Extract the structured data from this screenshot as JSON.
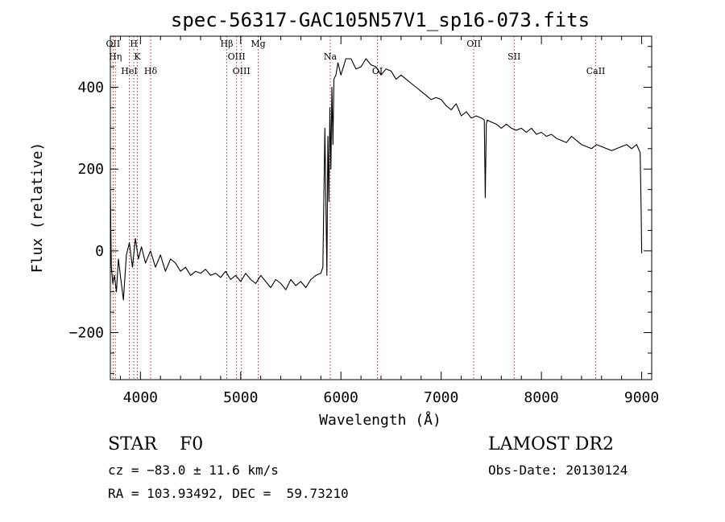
{
  "chart_data": {
    "type": "line",
    "title": "spec-56317-GAC105N57V1_sp16-073.fits",
    "xlabel": "Wavelength (Å)",
    "ylabel": "Flux (relative)",
    "xlim": [
      3700,
      9100
    ],
    "ylim": [
      -315,
      525
    ],
    "xticks": [
      4000,
      5000,
      6000,
      7000,
      8000,
      9000
    ],
    "yticks": [
      -200,
      0,
      200,
      400
    ],
    "grid": false,
    "line_color": "#000000",
    "marker_color": "#b03030",
    "series": [
      {
        "x": [
          3700,
          3710,
          3725,
          3740,
          3760,
          3780,
          3800,
          3830,
          3860,
          3890,
          3920,
          3950,
          3980,
          4010,
          4050,
          4100,
          4150,
          4200,
          4250,
          4300,
          4350,
          4400,
          4450,
          4500,
          4550,
          4600,
          4650,
          4700,
          4750,
          4800,
          4850,
          4900,
          4950,
          5000,
          5050,
          5100,
          5150,
          5200,
          5250,
          5300,
          5350,
          5400,
          5450,
          5500,
          5550,
          5600,
          5650,
          5700,
          5750,
          5800,
          5820,
          5840,
          5860,
          5870,
          5880,
          5890,
          5900,
          5910,
          5920,
          5930,
          5950,
          5970,
          6000,
          6050,
          6100,
          6150,
          6200,
          6250,
          6300,
          6350,
          6400,
          6450,
          6500,
          6550,
          6600,
          6650,
          6700,
          6750,
          6800,
          6850,
          6900,
          6950,
          7000,
          7050,
          7100,
          7150,
          7200,
          7250,
          7300,
          7350,
          7400,
          7430,
          7440,
          7450,
          7460,
          7500,
          7550,
          7600,
          7650,
          7700,
          7750,
          7800,
          7850,
          7900,
          7950,
          8000,
          8050,
          8100,
          8150,
          8200,
          8250,
          8300,
          8350,
          8400,
          8450,
          8500,
          8550,
          8600,
          8650,
          8700,
          8750,
          8800,
          8850,
          8900,
          8950,
          8985,
          8995,
          9000,
          9005
        ],
        "y": [
          150,
          -40,
          -80,
          -60,
          -100,
          -20,
          -60,
          -120,
          -10,
          20,
          -40,
          30,
          -20,
          10,
          -30,
          0,
          -40,
          -10,
          -50,
          -20,
          -30,
          -50,
          -40,
          -60,
          -50,
          -55,
          -45,
          -60,
          -55,
          -65,
          -50,
          -70,
          -60,
          -75,
          -55,
          -70,
          -80,
          -60,
          -75,
          -90,
          -70,
          -80,
          -95,
          -70,
          -85,
          -75,
          -90,
          -70,
          -60,
          -55,
          -40,
          300,
          -60,
          280,
          120,
          350,
          200,
          400,
          260,
          420,
          430,
          460,
          430,
          470,
          470,
          445,
          450,
          470,
          455,
          450,
          430,
          445,
          440,
          420,
          430,
          420,
          410,
          400,
          390,
          380,
          370,
          375,
          370,
          355,
          345,
          360,
          330,
          340,
          325,
          330,
          325,
          320,
          130,
          310,
          320,
          315,
          310,
          300,
          310,
          300,
          295,
          300,
          290,
          300,
          285,
          290,
          280,
          285,
          275,
          270,
          265,
          280,
          270,
          260,
          255,
          250,
          260,
          255,
          250,
          245,
          250,
          255,
          260,
          250,
          260,
          240,
          100,
          -5,
          -5
        ]
      }
    ],
    "lines": [
      {
        "label": "OII",
        "x": 3727
      },
      {
        "label": "Hη",
        "x": 3750
      },
      {
        "label": "HeI",
        "x": 3889
      },
      {
        "label": "H",
        "x": 3934
      },
      {
        "label": "K",
        "x": 3969
      },
      {
        "label": "Hδ",
        "x": 4102
      },
      {
        "label": "Hβ",
        "x": 4861
      },
      {
        "label": "OIII",
        "x": 4959
      },
      {
        "label": "OIII",
        "x": 5007
      },
      {
        "label": "Mg",
        "x": 5175
      },
      {
        "label": "Na",
        "x": 5894
      },
      {
        "label": "OI",
        "x": 6364
      },
      {
        "label": "OII",
        "x": 7325
      },
      {
        "label": "SII",
        "x": 7728
      },
      {
        "label": "CaII",
        "x": 8542
      }
    ]
  },
  "info": {
    "object_class": "STAR",
    "subclass": "F0",
    "survey": "LAMOST DR2",
    "cz": "cz = −83.0 ± 11.6 km/s",
    "obs_date": "Obs-Date: 20130124",
    "radec": "RA = 103.93492, DEC =  59.73210"
  }
}
